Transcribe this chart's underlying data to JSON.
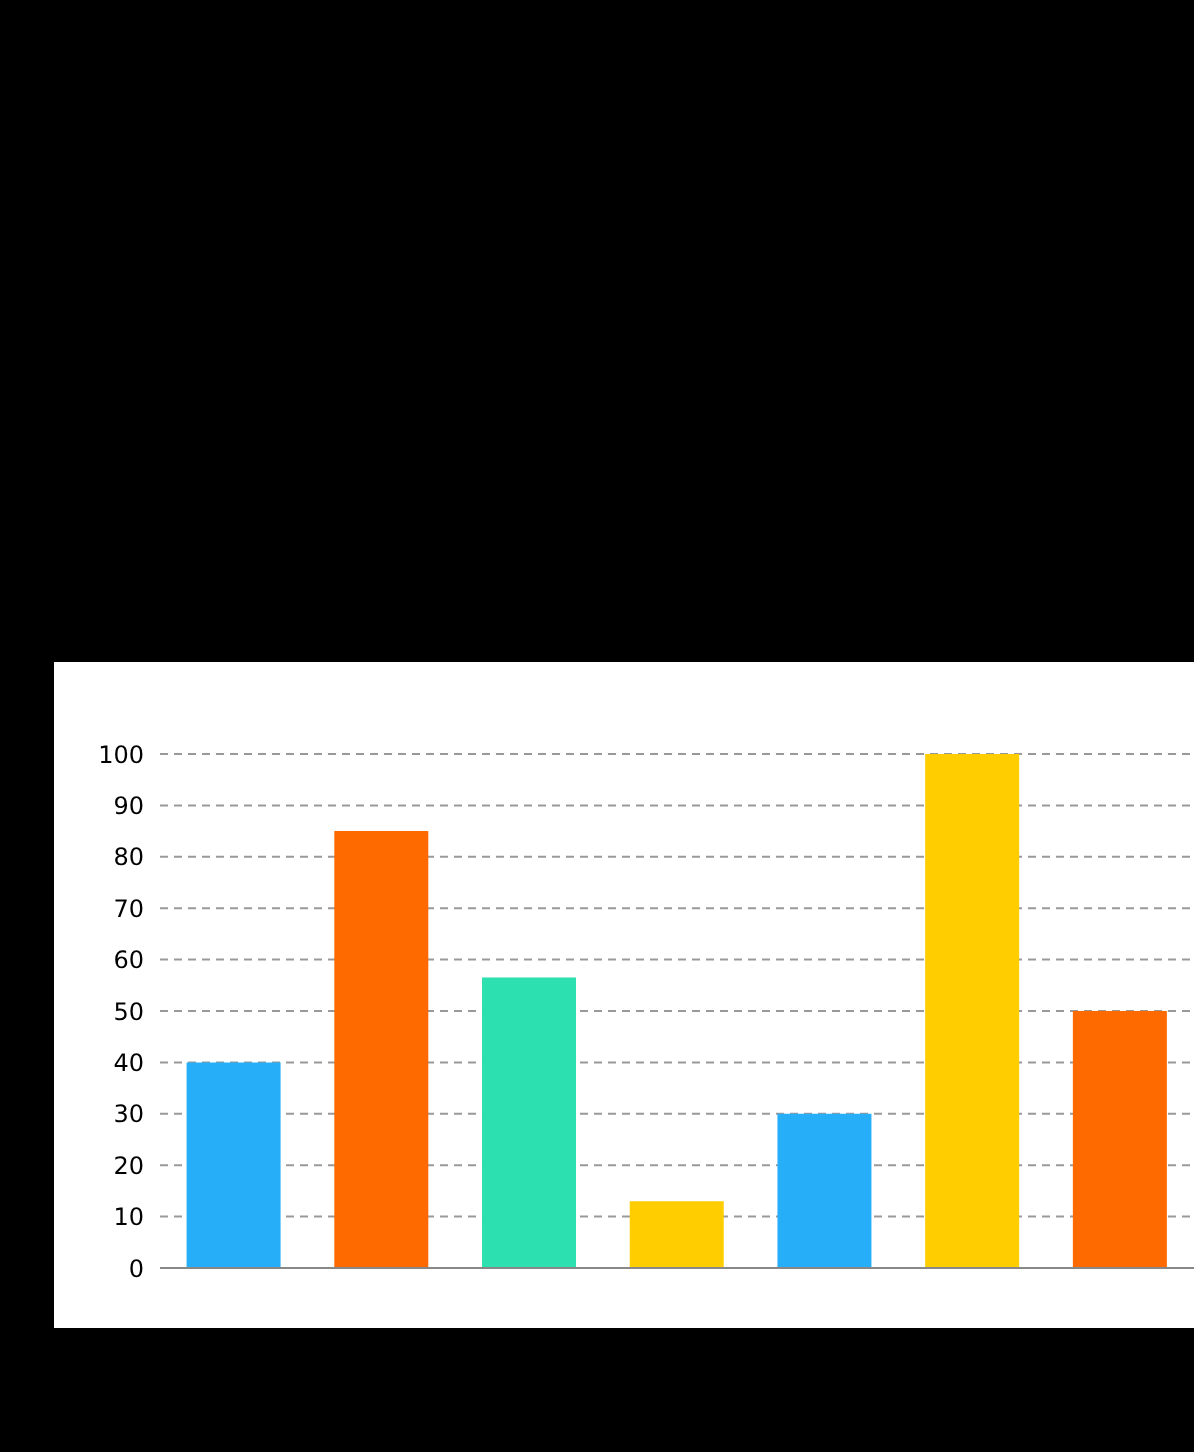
{
  "chart_data": {
    "type": "bar",
    "categories": [
      null,
      null,
      null,
      null,
      null,
      null,
      null
    ],
    "values": [
      40,
      85,
      56.5,
      13,
      30,
      100,
      50
    ],
    "colors": [
      "#27aef9",
      "#ff6a00",
      "#2de0af",
      "#ffcd00",
      "#27aef9",
      "#ffcd00",
      "#ff6a00"
    ],
    "ylim": [
      0,
      100
    ],
    "yticks": [
      0,
      10,
      20,
      30,
      40,
      50,
      60,
      70,
      80,
      90,
      100
    ],
    "grid": "y",
    "tick_labels": "y"
  }
}
